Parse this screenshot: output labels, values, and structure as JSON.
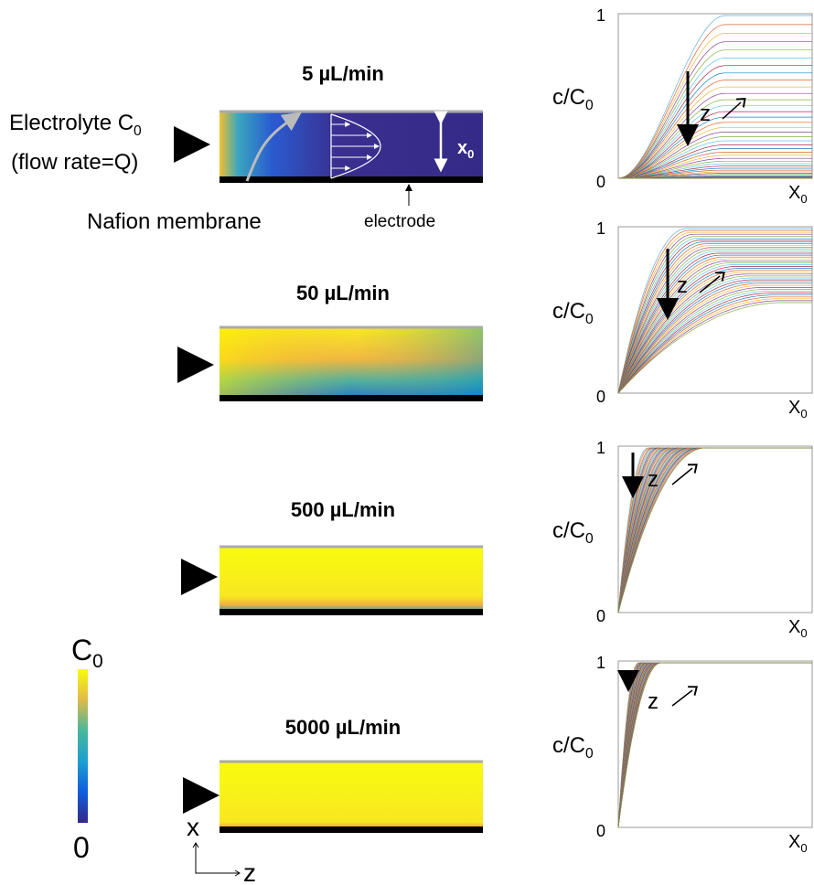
{
  "panels": [
    {
      "flow_rate": "5 µL/min",
      "plot": {
        "y_label": {
          "text": "c/C",
          "sub": "0"
        },
        "y_top": "1",
        "y_bottom": "0",
        "x_label": {
          "text": "X",
          "sub": "0"
        },
        "direction": "z"
      }
    },
    {
      "flow_rate": "50 µL/min",
      "plot": {
        "y_label": {
          "text": "c/C",
          "sub": "0"
        },
        "y_top": "1",
        "y_bottom": "0",
        "x_label": {
          "text": "X",
          "sub": "0"
        },
        "direction": "z"
      }
    },
    {
      "flow_rate": "500 µL/min",
      "plot": {
        "y_label": {
          "text": "c/C",
          "sub": "0"
        },
        "y_top": "1",
        "y_bottom": "0",
        "x_label": {
          "text": "X",
          "sub": "0"
        },
        "direction": "z"
      }
    },
    {
      "flow_rate": "5000 µL/min",
      "plot": {
        "y_label": {
          "text": "c/C",
          "sub": "0"
        },
        "y_top": "1",
        "y_bottom": "0",
        "x_label": {
          "text": "X",
          "sub": "0"
        },
        "direction": "z"
      }
    }
  ],
  "annotations": {
    "electrolyte": {
      "text": "Electrolyte C",
      "sub": "0"
    },
    "flow": "(flow rate=Q)",
    "membrane": "Nafion membrane",
    "electrode": "electrode",
    "height": {
      "text": "x",
      "sub": "0"
    }
  },
  "colorbar": {
    "top": {
      "text": "C",
      "sub": "0"
    },
    "bottom": "0"
  },
  "axes_legend": {
    "x": "x",
    "z": "z"
  }
}
